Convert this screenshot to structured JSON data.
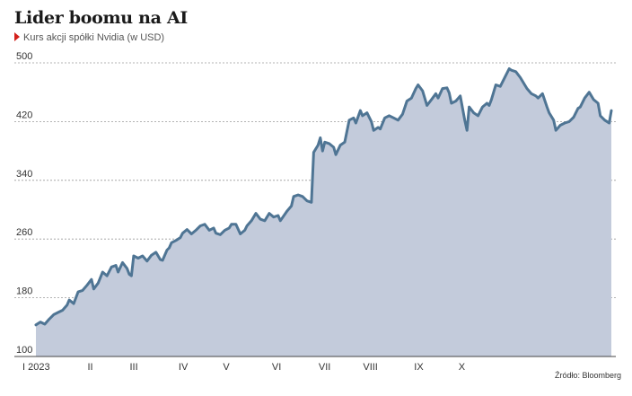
{
  "title": "Lider boomu na AI",
  "subtitle": "Kurs akcji spółki Nvidia (w USD)",
  "source": "Źródło: Bloomberg",
  "colors": {
    "line": "#4f7594",
    "area": "#c3cbdb",
    "marker": "#d3211c"
  },
  "chart_data": {
    "type": "area",
    "ylim": [
      100,
      500
    ],
    "yticks": [
      100,
      180,
      260,
      340,
      420,
      500
    ],
    "xlim": [
      0,
      261
    ],
    "xticks": [
      {
        "label": "I 2023",
        "pos": 0
      },
      {
        "label": "II",
        "pos": 22
      },
      {
        "label": "III",
        "pos": 41
      },
      {
        "label": "IV",
        "pos": 63
      },
      {
        "label": "V",
        "pos": 83
      },
      {
        "label": "VI",
        "pos": 105
      },
      {
        "label": "VII",
        "pos": 126
      },
      {
        "label": "VIII",
        "pos": 146
      },
      {
        "label": "IX",
        "pos": 169
      },
      {
        "label": "X",
        "pos": 189
      }
    ],
    "points": [
      [
        0,
        143
      ],
      [
        2,
        147
      ],
      [
        4,
        144
      ],
      [
        6,
        151
      ],
      [
        8,
        157
      ],
      [
        10,
        160
      ],
      [
        12,
        163
      ],
      [
        14,
        170
      ],
      [
        15,
        177
      ],
      [
        17,
        172
      ],
      [
        19,
        188
      ],
      [
        21,
        190
      ],
      [
        23,
        197
      ],
      [
        25,
        205
      ],
      [
        26,
        192
      ],
      [
        28,
        200
      ],
      [
        30,
        215
      ],
      [
        32,
        210
      ],
      [
        34,
        222
      ],
      [
        36,
        224
      ],
      [
        37,
        215
      ],
      [
        39,
        228
      ],
      [
        41,
        220
      ],
      [
        42,
        212
      ],
      [
        43,
        210
      ],
      [
        44,
        237
      ],
      [
        46,
        234
      ],
      [
        48,
        237
      ],
      [
        50,
        230
      ],
      [
        52,
        238
      ],
      [
        54,
        242
      ],
      [
        56,
        232
      ],
      [
        57,
        231
      ],
      [
        59,
        245
      ],
      [
        60,
        248
      ],
      [
        61,
        255
      ],
      [
        63,
        258
      ],
      [
        65,
        262
      ],
      [
        66,
        268
      ],
      [
        68,
        273
      ],
      [
        70,
        267
      ],
      [
        72,
        272
      ],
      [
        74,
        278
      ],
      [
        76,
        280
      ],
      [
        78,
        272
      ],
      [
        80,
        275
      ],
      [
        81,
        268
      ],
      [
        83,
        266
      ],
      [
        85,
        272
      ],
      [
        87,
        275
      ],
      [
        88,
        280
      ],
      [
        90,
        280
      ],
      [
        92,
        267
      ],
      [
        94,
        272
      ],
      [
        95,
        278
      ],
      [
        97,
        285
      ],
      [
        99,
        295
      ],
      [
        101,
        287
      ],
      [
        103,
        285
      ],
      [
        105,
        295
      ],
      [
        107,
        290
      ],
      [
        109,
        292
      ],
      [
        110,
        285
      ],
      [
        113,
        298
      ],
      [
        115,
        305
      ],
      [
        116,
        318
      ],
      [
        118,
        320
      ],
      [
        120,
        318
      ],
      [
        122,
        312
      ],
      [
        124,
        310
      ],
      [
        125,
        378
      ],
      [
        127,
        388
      ],
      [
        128,
        398
      ],
      [
        129,
        380
      ],
      [
        130,
        392
      ],
      [
        132,
        390
      ],
      [
        134,
        385
      ],
      [
        135,
        375
      ],
      [
        137,
        388
      ],
      [
        139,
        392
      ],
      [
        141,
        422
      ],
      [
        143,
        425
      ],
      [
        144,
        418
      ],
      [
        146,
        435
      ],
      [
        147,
        428
      ],
      [
        149,
        432
      ],
      [
        151,
        420
      ],
      [
        152,
        408
      ],
      [
        154,
        412
      ],
      [
        155,
        410
      ],
      [
        157,
        425
      ],
      [
        159,
        428
      ],
      [
        161,
        425
      ],
      [
        163,
        422
      ],
      [
        165,
        430
      ],
      [
        167,
        448
      ],
      [
        169,
        452
      ],
      [
        171,
        465
      ],
      [
        172,
        470
      ],
      [
        174,
        462
      ],
      [
        176,
        442
      ],
      [
        178,
        450
      ],
      [
        180,
        458
      ],
      [
        181,
        452
      ],
      [
        183,
        465
      ],
      [
        185,
        466
      ],
      [
        186,
        459
      ],
      [
        187,
        445
      ],
      [
        189,
        448
      ],
      [
        191,
        455
      ],
      [
        193,
        422
      ],
      [
        194,
        408
      ],
      [
        195,
        440
      ],
      [
        197,
        432
      ],
      [
        199,
        428
      ],
      [
        201,
        440
      ],
      [
        203,
        445
      ],
      [
        204,
        442
      ],
      [
        205,
        450
      ],
      [
        207,
        470
      ],
      [
        209,
        468
      ],
      [
        211,
        480
      ],
      [
        213,
        492
      ],
      [
        214,
        490
      ],
      [
        216,
        488
      ],
      [
        218,
        480
      ],
      [
        220,
        470
      ],
      [
        221,
        465
      ],
      [
        223,
        458
      ],
      [
        225,
        455
      ],
      [
        226,
        452
      ],
      [
        228,
        458
      ],
      [
        230,
        440
      ],
      [
        231,
        432
      ],
      [
        233,
        422
      ],
      [
        234,
        408
      ],
      [
        236,
        415
      ],
      [
        238,
        418
      ],
      [
        240,
        420
      ],
      [
        242,
        426
      ],
      [
        244,
        438
      ],
      [
        245,
        440
      ],
      [
        247,
        452
      ],
      [
        249,
        460
      ],
      [
        251,
        450
      ],
      [
        253,
        445
      ],
      [
        254,
        428
      ],
      [
        256,
        422
      ],
      [
        258,
        418
      ],
      [
        259,
        435
      ]
    ]
  }
}
